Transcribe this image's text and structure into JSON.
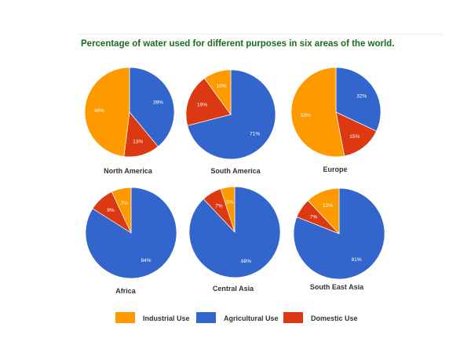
{
  "chart_data": {
    "type": "pie",
    "title": "Percentage of water used for different purposes in six areas of the world.",
    "legend": {
      "placement": "bottom",
      "entries": [
        "Industrial Use",
        "Agricultural Use",
        "Domestic Use"
      ]
    },
    "colors": {
      "Industrial Use": "#ff9900",
      "Agricultural Use": "#3366cc",
      "Domestic Use": "#dc3912"
    },
    "slice_order": [
      "Agricultural Use",
      "Domestic Use",
      "Industrial Use"
    ],
    "pies": [
      {
        "name": "North America",
        "values": {
          "Industrial Use": 48,
          "Agricultural Use": 39,
          "Domestic Use": 13
        }
      },
      {
        "name": "South America",
        "values": {
          "Industrial Use": 10,
          "Agricultural Use": 71,
          "Domestic Use": 19
        }
      },
      {
        "name": "Europe",
        "values": {
          "Industrial Use": 53,
          "Agricultural Use": 32,
          "Domestic Use": 15
        }
      },
      {
        "name": "Africa",
        "values": {
          "Industrial Use": 7,
          "Agricultural Use": 84,
          "Domestic Use": 9
        }
      },
      {
        "name": "Central Asia",
        "values": {
          "Industrial Use": 5,
          "Agricultural Use": 88,
          "Domestic Use": 7
        }
      },
      {
        "name": "South East Asia",
        "values": {
          "Industrial Use": 12,
          "Agricultural Use": 81,
          "Domestic Use": 7
        }
      }
    ]
  }
}
